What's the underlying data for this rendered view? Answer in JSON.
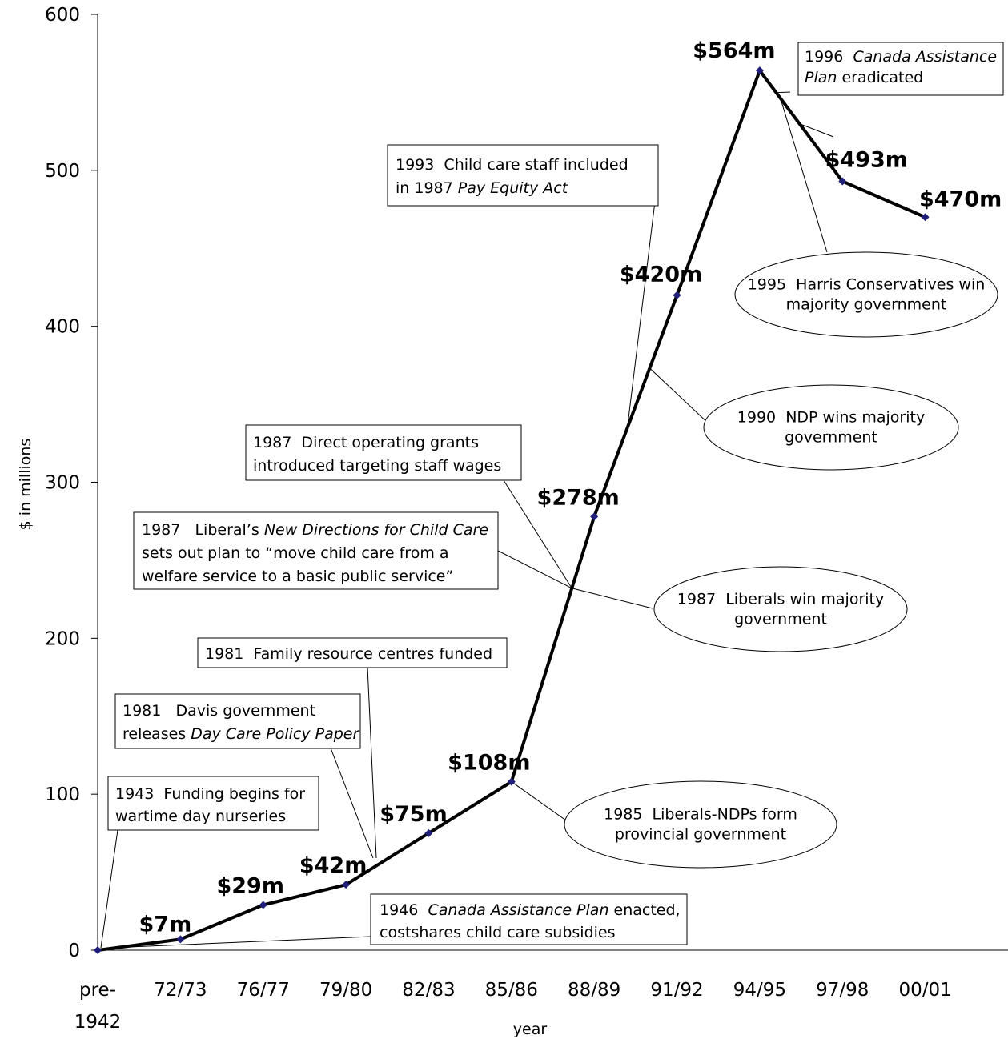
{
  "chart_data": {
    "type": "line",
    "title": "",
    "xlabel": "year",
    "ylabel": "$ in millions",
    "ylim": [
      0,
      600
    ],
    "yticks": [
      0,
      100,
      200,
      300,
      400,
      500,
      600
    ],
    "grid": false,
    "legend": "none",
    "categories": [
      {
        "line1": "pre-",
        "line2": "1942"
      },
      {
        "line1": "72/73",
        "line2": ""
      },
      {
        "line1": "76/77",
        "line2": ""
      },
      {
        "line1": "79/80",
        "line2": ""
      },
      {
        "line1": "82/83",
        "line2": ""
      },
      {
        "line1": "85/86",
        "line2": ""
      },
      {
        "line1": "88/89",
        "line2": ""
      },
      {
        "line1": "91/92",
        "line2": ""
      },
      {
        "line1": "94/95",
        "line2": ""
      },
      {
        "line1": "97/98",
        "line2": ""
      },
      {
        "line1": "00/01",
        "line2": ""
      }
    ],
    "values": [
      0,
      7,
      29,
      42,
      75,
      108,
      278,
      420,
      564,
      493,
      470
    ],
    "data_labels": [
      "",
      "$7m",
      "$29m",
      "$42m",
      "$75m",
      "$108m",
      "$278m",
      "$420m",
      "$564m",
      "$493m",
      "$470m"
    ],
    "line_color": "#000000",
    "marker_color": "#1f1f7a",
    "annotations": [
      {
        "id": "a1943",
        "shape": "rect",
        "lines": [
          [
            {
              "t": "1943  Funding begins for"
            }
          ],
          [
            {
              "t": "wartime day nurseries"
            }
          ]
        ]
      },
      {
        "id": "a1946",
        "shape": "rect",
        "lines": [
          [
            {
              "t": "1946  "
            },
            {
              "t": "Canada Assistance Plan",
              "i": true
            },
            {
              "t": " enacted,"
            }
          ],
          [
            {
              "t": "costshares child care subsidies"
            }
          ]
        ]
      },
      {
        "id": "a1981davis",
        "shape": "rect",
        "lines": [
          [
            {
              "t": "1981   Davis government"
            }
          ],
          [
            {
              "t": "releases "
            },
            {
              "t": "Day Care Policy Paper",
              "i": true
            }
          ]
        ]
      },
      {
        "id": "a1981frc",
        "shape": "rect",
        "lines": [
          [
            {
              "t": "1981  Family resource centres funded"
            }
          ]
        ]
      },
      {
        "id": "a1987liberal",
        "shape": "rect",
        "lines": [
          [
            {
              "t": "1987   Liberal’s "
            },
            {
              "t": "New Directions for Child Care",
              "i": true
            }
          ],
          [
            {
              "t": "sets out plan to “move child care from a"
            }
          ],
          [
            {
              "t": "welfare service to a basic public service”"
            }
          ]
        ]
      },
      {
        "id": "a1987grants",
        "shape": "rect",
        "lines": [
          [
            {
              "t": "1987  Direct operating grants"
            }
          ],
          [
            {
              "t": "introduced targeting staff wages"
            }
          ]
        ]
      },
      {
        "id": "a1993",
        "shape": "rect",
        "lines": [
          [
            {
              "t": "1993  Child care staff included"
            }
          ],
          [
            {
              "t": "in 1987 "
            },
            {
              "t": "Pay Equity Act",
              "i": true
            }
          ]
        ]
      },
      {
        "id": "a1996",
        "shape": "rect",
        "lines": [
          [
            {
              "t": "1996  "
            },
            {
              "t": "Canada Assistance",
              "i": true
            }
          ],
          [
            {
              "t": "Plan",
              "i": true
            },
            {
              "t": " eradicated"
            }
          ]
        ]
      },
      {
        "id": "a1995",
        "shape": "ellipse",
        "lines": [
          [
            {
              "t": "1995  Harris Conservatives win"
            }
          ],
          [
            {
              "t": "majority government"
            }
          ]
        ]
      },
      {
        "id": "a1990",
        "shape": "ellipse",
        "lines": [
          [
            {
              "t": "1990  NDP wins majority"
            }
          ],
          [
            {
              "t": "government"
            }
          ]
        ]
      },
      {
        "id": "a1987win",
        "shape": "ellipse",
        "lines": [
          [
            {
              "t": "1987  Liberals win majority"
            }
          ],
          [
            {
              "t": "government"
            }
          ]
        ]
      },
      {
        "id": "a1985",
        "shape": "ellipse",
        "lines": [
          [
            {
              "t": "1985  Liberals-NDPs form"
            }
          ],
          [
            {
              "t": "provincial government"
            }
          ]
        ]
      }
    ]
  }
}
